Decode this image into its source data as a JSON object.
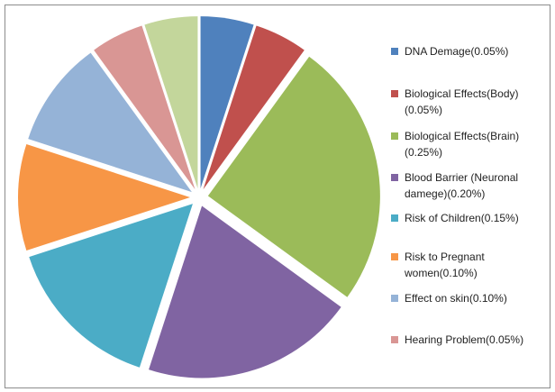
{
  "chart_data": {
    "type": "pie",
    "exploded": true,
    "legend_position": "right",
    "slices": [
      {
        "label": "DNA Demage(0.05%)",
        "value": 0.05,
        "color": "#4F81BD"
      },
      {
        "label": "Biological Effects(Body)(0.05%)",
        "value": 0.05,
        "color": "#C0504D"
      },
      {
        "label": "Biological Effects(Brain)(0.25%)",
        "value": 0.25,
        "color": "#9BBB59"
      },
      {
        "label": "Blood Barrier (Neuronal damege)(0.20%)",
        "value": 0.2,
        "color": "#8064A2"
      },
      {
        "label": "Risk of Children(0.15%)",
        "value": 0.15,
        "color": "#4BACC6"
      },
      {
        "label": "Risk to Pregnant women(0.10%)",
        "value": 0.1,
        "color": "#F79646"
      },
      {
        "label": "Effect on skin(0.10%)",
        "value": 0.1,
        "color": "#95B3D7"
      },
      {
        "label": "Hearing Problem(0.05%)",
        "value": 0.05,
        "color": "#D99694"
      },
      {
        "label": "",
        "value": 0.05,
        "color": "#C3D69B"
      }
    ]
  }
}
